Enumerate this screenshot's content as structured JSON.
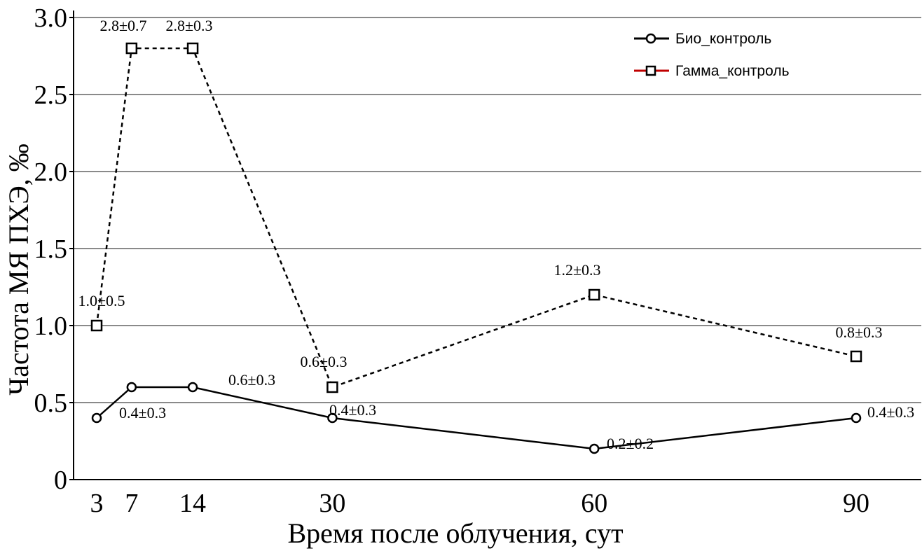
{
  "chart_data": {
    "type": "line",
    "title": "",
    "xlabel": "Время после облучения, сут",
    "ylabel": "Частота МЯ ПХЭ, ‰",
    "x": [
      3,
      7,
      14,
      30,
      60,
      90
    ],
    "x_ticks": [
      "3",
      "7",
      "14",
      "30",
      "60",
      "90"
    ],
    "xlim": [
      0,
      90
    ],
    "ylim": [
      0,
      3.0
    ],
    "y_ticks": [
      "0",
      "0.5",
      "1.0",
      "1.5",
      "2.0",
      "2.5",
      "3.0"
    ],
    "grid": "horizontal",
    "legend_position": "top-right",
    "series": [
      {
        "name": "Био_контроль",
        "values": [
          0.4,
          0.6,
          0.6,
          0.4,
          0.2,
          0.4
        ],
        "labels": [
          "0.4±0.3",
          "",
          "0.6±0.3",
          "0.4±0.3",
          "0.2±0.2",
          "0.4±0.3"
        ],
        "marker": "circle",
        "line_style": "solid",
        "color": "#000000",
        "legend_color": "#000000"
      },
      {
        "name": "Гамма_контроль",
        "values": [
          1.0,
          2.8,
          2.8,
          0.6,
          1.2,
          0.8
        ],
        "labels": [
          "1.0±0.5",
          "2.8±0.7",
          "2.8±0.3",
          "0.6±0.3",
          "1.2±0.3",
          "0.8±0.3"
        ],
        "marker": "square",
        "line_style": "dashed",
        "color": "#000000",
        "legend_color": "#c00000"
      }
    ]
  }
}
